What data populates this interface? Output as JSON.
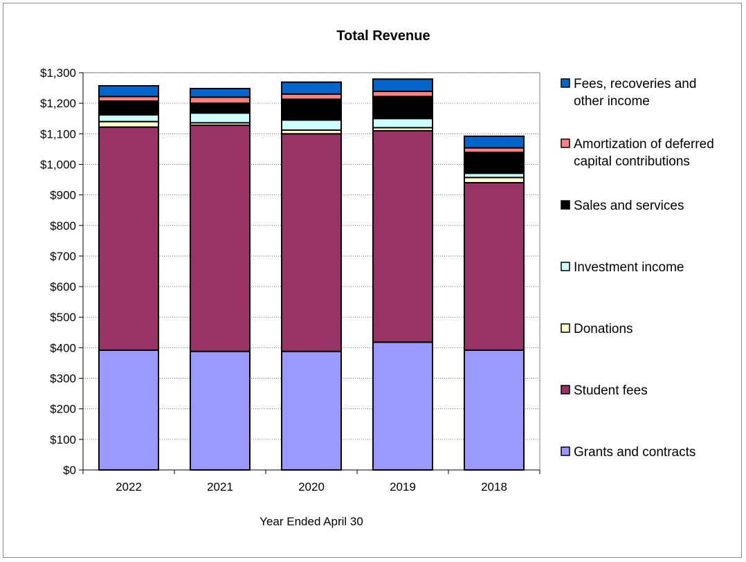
{
  "chart_data": {
    "type": "bar",
    "stacked": true,
    "title": "Total Revenue",
    "xlabel": "Year Ended April 30",
    "ylabel": "",
    "ylim": [
      0,
      1300
    ],
    "y_ticks": [
      0,
      100,
      200,
      300,
      400,
      500,
      600,
      700,
      800,
      900,
      1000,
      1100,
      1200,
      1300
    ],
    "y_tick_labels": [
      "$0",
      "$100",
      "$200",
      "$300",
      "$400",
      "$500",
      "$600",
      "$700",
      "$800",
      "$900",
      "$1,000",
      "$1,100",
      "$1,200",
      "$1,300"
    ],
    "grid": true,
    "legend_position": "right",
    "categories": [
      "2022",
      "2021",
      "2020",
      "2019",
      "2018"
    ],
    "series": [
      {
        "name": "Grants and contracts",
        "color": "#9999ff",
        "values": [
          392,
          388,
          388,
          418,
          392
        ]
      },
      {
        "name": "Student fees",
        "color": "#993366",
        "values": [
          730,
          740,
          712,
          692,
          548
        ]
      },
      {
        "name": "Donations",
        "color": "#ffffcc",
        "values": [
          18,
          8,
          12,
          10,
          17
        ]
      },
      {
        "name": "Investment income",
        "color": "#ccffff",
        "values": [
          22,
          32,
          33,
          30,
          14
        ]
      },
      {
        "name": "Sales and services",
        "color": "#000000",
        "values": [
          45,
          32,
          68,
          72,
          68
        ]
      },
      {
        "name": "Amortization of deferred capital contributions",
        "color": "#ff8080",
        "values": [
          15,
          20,
          17,
          17,
          15
        ]
      },
      {
        "name": "Fees, recoveries and other income",
        "color": "#0066cc",
        "values": [
          35,
          28,
          39,
          40,
          38
        ]
      }
    ],
    "legend": [
      {
        "lines": [
          "Fees, recoveries and",
          "other income"
        ],
        "color": "#0066cc"
      },
      {
        "lines": [
          "Amortization of deferred",
          "capital contributions"
        ],
        "color": "#ff8080"
      },
      {
        "lines": [
          "Sales and services"
        ],
        "color": "#000000"
      },
      {
        "lines": [
          "Investment income"
        ],
        "color": "#ccffff"
      },
      {
        "lines": [
          "Donations"
        ],
        "color": "#ffffcc"
      },
      {
        "lines": [
          "Student fees"
        ],
        "color": "#993366"
      },
      {
        "lines": [
          "Grants and contracts"
        ],
        "color": "#9999ff"
      }
    ]
  }
}
